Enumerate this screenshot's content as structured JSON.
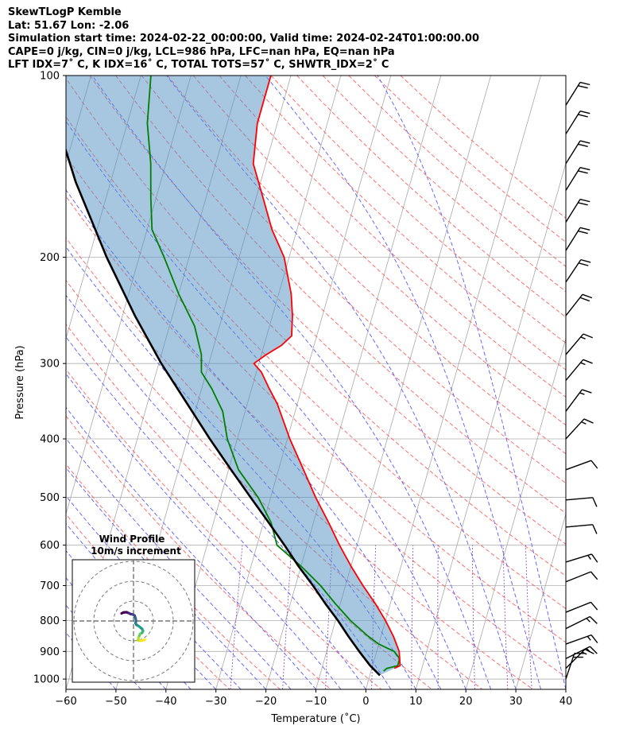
{
  "header": {
    "line1": "SkewTLogP Kemble",
    "line2": "Lat: 51.67   Lon: -2.06",
    "line3": "Simulation start time: 2024-02-22_00:00:00, Valid time: 2024-02-24T01:00:00.00",
    "line4": "CAPE=0 j/kg, CIN=0 j/kg, LCL=986 hPa, LFC=nan hPa, EQ=nan hPa",
    "line5": "LFT IDX=7˚ C, K IDX=16˚ C, TOTAL TOTS=57˚ C, SHWTR_IDX=2˚ C"
  },
  "chart_data": {
    "type": "skew-t log-p",
    "xlabel": "Temperature (˚C)",
    "ylabel": "Pressure (hPa)",
    "xlim": [
      -60,
      40
    ],
    "ylim": [
      1040,
      100
    ],
    "y_scale": "log",
    "x_ticks": [
      -60,
      -50,
      -40,
      -30,
      -20,
      -10,
      0,
      10,
      20,
      30,
      40
    ],
    "x_tick_labels": [
      "−60",
      "−50",
      "−40",
      "−30",
      "−20",
      "−10",
      "0",
      "10",
      "20",
      "30",
      "40"
    ],
    "y_ticks": [
      1000,
      900,
      800,
      700,
      600,
      500,
      400,
      300,
      200,
      100
    ],
    "grid": true,
    "series": [
      {
        "label": "temperature",
        "color": "#ff0000",
        "points": [
          [
            960,
            4.5
          ],
          [
            950,
            5.5
          ],
          [
            925,
            5
          ],
          [
            900,
            4.5
          ],
          [
            850,
            2.5
          ],
          [
            800,
            0
          ],
          [
            750,
            -3
          ],
          [
            700,
            -6.5
          ],
          [
            650,
            -10
          ],
          [
            600,
            -13.5
          ],
          [
            550,
            -17
          ],
          [
            500,
            -21
          ],
          [
            450,
            -25
          ],
          [
            400,
            -29.5
          ],
          [
            350,
            -34
          ],
          [
            330,
            -36.5
          ],
          [
            310,
            -39
          ],
          [
            300,
            -41
          ],
          [
            290,
            -39
          ],
          [
            280,
            -36.5
          ],
          [
            270,
            -35
          ],
          [
            250,
            -36
          ],
          [
            230,
            -37.5
          ],
          [
            200,
            -41
          ],
          [
            180,
            -45
          ],
          [
            160,
            -48.5
          ],
          [
            140,
            -52.5
          ],
          [
            120,
            -54
          ],
          [
            100,
            -54
          ]
        ]
      },
      {
        "label": "dewpoint",
        "color": "#008000",
        "points": [
          [
            970,
            2.5
          ],
          [
            960,
            3
          ],
          [
            950,
            5
          ],
          [
            925,
            5
          ],
          [
            900,
            3.5
          ],
          [
            875,
            0
          ],
          [
            850,
            -2.5
          ],
          [
            800,
            -7
          ],
          [
            750,
            -11
          ],
          [
            700,
            -15
          ],
          [
            650,
            -20
          ],
          [
            600,
            -26
          ],
          [
            550,
            -28.5
          ],
          [
            500,
            -32.5
          ],
          [
            450,
            -38
          ],
          [
            400,
            -42
          ],
          [
            360,
            -44.5
          ],
          [
            330,
            -48
          ],
          [
            310,
            -51
          ],
          [
            290,
            -52
          ],
          [
            260,
            -55
          ],
          [
            230,
            -60
          ],
          [
            200,
            -65
          ],
          [
            180,
            -69
          ],
          [
            160,
            -71
          ],
          [
            140,
            -73
          ],
          [
            120,
            -76
          ],
          [
            100,
            -78
          ]
        ]
      },
      {
        "label": "parcel",
        "color": "#000000",
        "points": [
          [
            986,
            2
          ],
          [
            950,
            -0.5
          ],
          [
            900,
            -3.5
          ],
          [
            850,
            -6.5
          ],
          [
            800,
            -9.5
          ],
          [
            750,
            -13
          ],
          [
            700,
            -16.5
          ],
          [
            650,
            -20.5
          ],
          [
            600,
            -24.5
          ],
          [
            550,
            -29
          ],
          [
            500,
            -34
          ],
          [
            450,
            -39.5
          ],
          [
            400,
            -45.5
          ],
          [
            350,
            -52
          ],
          [
            300,
            -59.5
          ],
          [
            250,
            -67.5
          ],
          [
            200,
            -76.5
          ],
          [
            150,
            -87
          ],
          [
            120,
            -94
          ],
          [
            100,
            -99.5
          ]
        ]
      }
    ],
    "wind_barbs": [
      {
        "p": 1000,
        "u": -6,
        "v": -18
      },
      {
        "p": 960,
        "u": -12,
        "v": -12
      },
      {
        "p": 925,
        "u": -14,
        "v": -7
      },
      {
        "p": 875,
        "u": -14,
        "v": -5
      },
      {
        "p": 825,
        "u": -12,
        "v": -6
      },
      {
        "p": 775,
        "u": -10,
        "v": -4
      },
      {
        "p": 690,
        "u": -10,
        "v": -4
      },
      {
        "p": 640,
        "u": -13,
        "v": -4
      },
      {
        "p": 560,
        "u": -11,
        "v": -1
      },
      {
        "p": 505,
        "u": -11,
        "v": -1
      },
      {
        "p": 450,
        "u": -11,
        "v": -4
      },
      {
        "p": 400,
        "u": -11,
        "v": -12
      },
      {
        "p": 360,
        "u": -9,
        "v": -12
      },
      {
        "p": 320,
        "u": -10,
        "v": -12
      },
      {
        "p": 290,
        "u": -11,
        "v": -13
      },
      {
        "p": 250,
        "u": -11,
        "v": -14
      },
      {
        "p": 220,
        "u": -10,
        "v": -15
      },
      {
        "p": 195,
        "u": -10,
        "v": -16
      },
      {
        "p": 175,
        "u": -10,
        "v": -16
      },
      {
        "p": 155,
        "u": -10,
        "v": -16
      },
      {
        "p": 140,
        "u": -10,
        "v": -16
      },
      {
        "p": 125,
        "u": -10,
        "v": -16
      },
      {
        "p": 112,
        "u": -10,
        "v": -16
      }
    ],
    "inset": {
      "title_line1": "Wind Profile",
      "title_line2": "10m/s increment",
      "hodograph": [
        [
          -6,
          3.8
        ],
        [
          -5,
          4.3
        ],
        [
          -3.5,
          4.4
        ],
        [
          -2.5,
          4
        ],
        [
          -1.5,
          3.5
        ],
        [
          -0.5,
          3.3
        ],
        [
          0.5,
          2.8
        ],
        [
          1,
          1.5
        ],
        [
          1.3,
          0
        ],
        [
          1,
          -1
        ],
        [
          1.5,
          -2
        ],
        [
          2.5,
          -2.5
        ],
        [
          3.5,
          -3.3
        ],
        [
          4.3,
          -4
        ],
        [
          4.8,
          -5
        ],
        [
          4.3,
          -6
        ],
        [
          3.3,
          -6.5
        ],
        [
          3,
          -7.3
        ],
        [
          2.5,
          -8.5
        ],
        [
          2.2,
          -9.7
        ],
        [
          3.5,
          -10
        ],
        [
          5,
          -9.7
        ],
        [
          5.7,
          -9.3
        ]
      ]
    }
  }
}
